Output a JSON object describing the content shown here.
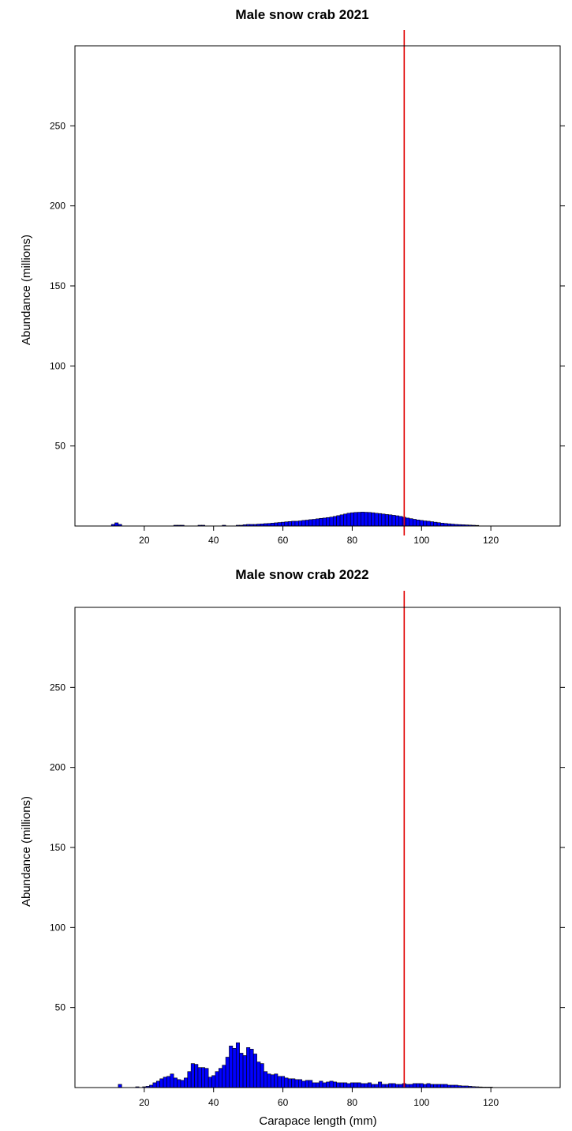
{
  "chart_data": [
    {
      "type": "bar",
      "title": "Male snow crab 2021",
      "xlabel": "",
      "ylabel": "Abundance (millions)",
      "xlim": [
        0,
        140
      ],
      "ylim": [
        0,
        300
      ],
      "xticks": [
        20,
        40,
        60,
        80,
        100,
        120
      ],
      "yticks": [
        50,
        100,
        150,
        200,
        250
      ],
      "bin_width": 1,
      "reference_line_x": 95,
      "reference_line_color": "#e00000",
      "bar_color": "#0000ff",
      "bar_edge_color": "#000000",
      "x": [
        11,
        12,
        13,
        29,
        30,
        31,
        36,
        37,
        43,
        47,
        48,
        49,
        50,
        51,
        52,
        53,
        54,
        55,
        56,
        57,
        58,
        59,
        60,
        61,
        62,
        63,
        64,
        65,
        66,
        67,
        68,
        69,
        70,
        71,
        72,
        73,
        74,
        75,
        76,
        77,
        78,
        79,
        80,
        81,
        82,
        83,
        84,
        85,
        86,
        87,
        88,
        89,
        90,
        91,
        92,
        93,
        94,
        95,
        96,
        97,
        98,
        99,
        100,
        101,
        102,
        103,
        104,
        105,
        106,
        107,
        108,
        109,
        110,
        111,
        112,
        113,
        114,
        115,
        116
      ],
      "values": [
        1,
        2,
        1,
        0.5,
        0.5,
        0.5,
        0.5,
        0.5,
        0.5,
        0.5,
        0.5,
        0.8,
        1,
        1,
        1,
        1.2,
        1.3,
        1.5,
        1.6,
        1.8,
        2,
        2.2,
        2.4,
        2.6,
        2.8,
        3,
        3,
        3.2,
        3.5,
        3.7,
        4,
        4.2,
        4.5,
        4.8,
        5,
        5.3,
        5.6,
        6,
        6.5,
        7,
        7.5,
        8,
        8.3,
        8.5,
        8.6,
        8.7,
        8.6,
        8.5,
        8.3,
        8,
        7.8,
        7.5,
        7.2,
        7,
        6.7,
        6.4,
        6,
        5.5,
        5,
        4.6,
        4.2,
        3.8,
        3.5,
        3.2,
        3,
        2.7,
        2.4,
        2.1,
        1.8,
        1.6,
        1.4,
        1.2,
        1,
        0.9,
        0.8,
        0.7,
        0.6,
        0.5,
        0.4
      ]
    },
    {
      "type": "bar",
      "title": "Male snow crab 2022",
      "xlabel": "Carapace length (mm)",
      "ylabel": "Abundance (millions)",
      "xlim": [
        0,
        140
      ],
      "ylim": [
        0,
        300
      ],
      "xticks": [
        20,
        40,
        60,
        80,
        100,
        120
      ],
      "yticks": [
        50,
        100,
        150,
        200,
        250
      ],
      "bin_width": 1,
      "reference_line_x": 95,
      "reference_line_color": "#e00000",
      "bar_color": "#0000ff",
      "bar_edge_color": "#000000",
      "x": [
        13,
        18,
        20,
        21,
        22,
        23,
        24,
        25,
        26,
        27,
        28,
        29,
        30,
        31,
        32,
        33,
        34,
        35,
        36,
        37,
        38,
        39,
        40,
        41,
        42,
        43,
        44,
        45,
        46,
        47,
        48,
        49,
        50,
        51,
        52,
        53,
        54,
        55,
        56,
        57,
        58,
        59,
        60,
        61,
        62,
        63,
        64,
        65,
        66,
        67,
        68,
        69,
        70,
        71,
        72,
        73,
        74,
        75,
        76,
        77,
        78,
        79,
        80,
        81,
        82,
        83,
        84,
        85,
        86,
        87,
        88,
        89,
        90,
        91,
        92,
        93,
        94,
        95,
        96,
        97,
        98,
        99,
        100,
        101,
        102,
        103,
        104,
        105,
        106,
        107,
        108,
        109,
        110,
        111,
        112,
        113,
        114,
        115,
        116,
        117,
        118,
        119,
        120
      ],
      "values": [
        2,
        0.5,
        0.5,
        0.8,
        1.5,
        3,
        4,
        5.5,
        6.5,
        7,
        8.5,
        6,
        5,
        4.5,
        6,
        10,
        15,
        14.5,
        12.5,
        12.5,
        12,
        6.5,
        7.5,
        10,
        12,
        14,
        19,
        26,
        24.5,
        28,
        21.5,
        20,
        25,
        24,
        21,
        16,
        15,
        10,
        8.5,
        8,
        8.5,
        7,
        7,
        6,
        5.5,
        5.5,
        5,
        5,
        4,
        4.5,
        4.5,
        3,
        3,
        4,
        3,
        3.5,
        4,
        3.5,
        3,
        3,
        3,
        2.5,
        3,
        3,
        3,
        2.5,
        2.5,
        3,
        2,
        2,
        3.5,
        2,
        2,
        2.5,
        2.5,
        2,
        2,
        2.5,
        2,
        2,
        2.5,
        2.5,
        2.5,
        2,
        2.5,
        2,
        2,
        2,
        2,
        2,
        1.5,
        1.5,
        1.5,
        1.2,
        1,
        1,
        0.8,
        0.6,
        0.5,
        0.4,
        0.3,
        0.3,
        0.3
      ]
    }
  ]
}
